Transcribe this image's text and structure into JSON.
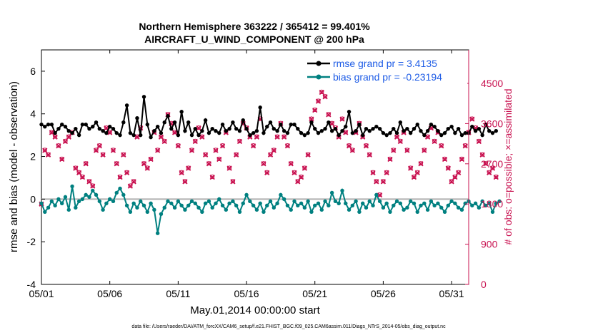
{
  "chart_data": {
    "type": "line",
    "title_line1": "Northern Hemisphere 363222 / 365412 = 99.401%",
    "title_line2": "AIRCRAFT_U_WIND_COMPONENT @ 200 hPa",
    "xlabel": "May.01,2014 00:00:00 start",
    "ylabel_left": "rmse and bias (model - observation)",
    "ylabel_right": "# of obs: o=possible; ×=assimilated",
    "footnote": "data file: /Users/raeder/DAI/ATM_forcXX/CAM6_setup/f.e21.FHIST_BGC.f09_025.CAM6assim.011/Diags_NTrS_2014-05/obs_diag_output.nc",
    "x_tick_labels": [
      "05/01",
      "05/06",
      "05/11",
      "05/16",
      "05/21",
      "05/26",
      "05/31"
    ],
    "x_tick_days": [
      0,
      5,
      10,
      15,
      20,
      25,
      30
    ],
    "xlim_days": [
      0,
      31.25
    ],
    "ylim_left": [
      -4,
      7
    ],
    "y_ticks_left": [
      -4,
      -2,
      0,
      2,
      4,
      6
    ],
    "y_tick_labels_left": [
      "-4",
      "-2",
      "0",
      "2",
      "4",
      "6"
    ],
    "ylim_right": [
      0,
      5250
    ],
    "y_ticks_right": [
      0,
      900,
      1800,
      2700,
      3600,
      4500
    ],
    "y_tick_labels_right": [
      "0",
      "900",
      "1800",
      "2700",
      "3600",
      "4500"
    ],
    "step_days": 0.25,
    "legend": [
      {
        "name": "rmse grand pr = 3.4135",
        "color": "#000000"
      },
      {
        "name": "bias grand pr = -0.23194",
        "color": "#008080"
      }
    ],
    "series": [
      {
        "name": "rmse",
        "color": "#000000",
        "values": [
          3.5,
          3.4,
          3.5,
          3.5,
          3.1,
          3.3,
          3.5,
          3.4,
          3.2,
          3.1,
          3.3,
          3.0,
          3.5,
          3.5,
          3.3,
          3.4,
          3.6,
          3.3,
          3.2,
          3.1,
          3.4,
          3.3,
          3.1,
          3.0,
          3.6,
          4.4,
          3.1,
          3.0,
          3.8,
          3.0,
          4.8,
          3.5,
          2.9,
          3.2,
          3.4,
          3.1,
          3.6,
          3.9,
          3.3,
          3.6,
          3.0,
          4.1,
          3.2,
          3.6,
          3.0,
          3.3,
          3.0,
          3.2,
          3.7,
          3.1,
          3.3,
          3.2,
          3.1,
          3.5,
          3.2,
          3.3,
          3.6,
          3.3,
          3.2,
          3.7,
          3.3,
          3.0,
          3.1,
          3.2,
          4.3,
          3.1,
          3.4,
          3.6,
          3.3,
          3.2,
          3.5,
          3.2,
          3.1,
          3.5,
          3.5,
          3.3,
          3.1,
          3.0,
          3.1,
          3.6,
          3.3,
          3.1,
          3.2,
          3.3,
          3.6,
          3.2,
          3.3,
          3.0,
          3.2,
          3.4,
          4.1,
          3.1,
          3.2,
          3.5,
          3.0,
          3.3,
          3.2,
          3.3,
          3.4,
          3.3,
          3.1,
          3.0,
          3.1,
          3.3,
          3.1,
          3.6,
          3.2,
          3.3,
          3.1,
          3.3,
          3.5,
          3.2,
          3.0,
          3.2,
          3.5,
          3.4,
          3.2,
          3.0,
          3.1,
          3.3,
          3.4,
          3.1,
          3.3,
          3.0,
          3.1,
          3.1,
          3.4,
          3.2,
          3.3,
          3.0,
          3.5,
          3.2,
          3.1,
          3.2
        ]
      },
      {
        "name": "bias",
        "color": "#008080",
        "values": [
          -0.2,
          -0.6,
          -0.4,
          -0.1,
          -0.3,
          0.0,
          -0.2,
          0.1,
          -0.5,
          0.6,
          -0.4,
          -0.1,
          0.0,
          0.2,
          0.1,
          0.4,
          0.2,
          -0.1,
          -0.5,
          -0.2,
          0.0,
          -0.1,
          0.3,
          0.5,
          0.2,
          -0.3,
          -0.6,
          -0.2,
          -0.4,
          -0.1,
          -0.3,
          -0.6,
          -0.2,
          -0.5,
          -1.6,
          -0.7,
          -0.4,
          -0.1,
          -0.2,
          -0.4,
          -0.1,
          -0.3,
          -0.5,
          -0.3,
          -0.1,
          -0.2,
          -0.4,
          -0.6,
          -0.2,
          -0.1,
          -0.4,
          -0.2,
          0.0,
          -0.3,
          -0.5,
          -0.2,
          -0.1,
          -0.3,
          -0.6,
          -0.2,
          0.2,
          -0.1,
          -0.3,
          -0.5,
          -0.2,
          -0.6,
          -0.3,
          -0.1,
          -0.4,
          -0.2,
          0.2,
          0.0,
          -0.3,
          -0.5,
          -0.1,
          -0.3,
          -0.2,
          -0.4,
          -0.1,
          -0.6,
          -0.3,
          -0.2,
          -0.5,
          -0.1,
          -0.3,
          0.3,
          -0.1,
          -0.2,
          0.4,
          -0.2,
          -0.5,
          -0.3,
          -0.1,
          -0.6,
          -0.2,
          -0.4,
          -0.1,
          -0.3,
          0.2,
          -0.1,
          -0.4,
          -0.2,
          -0.6,
          -0.3,
          -0.1,
          -0.2,
          -0.5,
          -0.4,
          -0.1,
          -0.2,
          -0.6,
          -0.3,
          -0.2,
          -0.5,
          -0.1,
          -0.3,
          -0.2,
          -0.4,
          -0.6,
          -0.3,
          -0.1,
          -0.2,
          -0.4,
          -0.5,
          -0.2,
          -0.1,
          -0.3,
          -0.2,
          -0.4,
          -0.1,
          -0.3,
          -0.2,
          -0.6,
          -0.2,
          -0.1
        ]
      },
      {
        "name": "obs_assimilated",
        "color": "#c8104f",
        "marker": "x",
        "values": [
          1800,
          3000,
          2900,
          3400,
          3300,
          3100,
          2800,
          3200,
          3300,
          3400,
          2600,
          2500,
          2400,
          2700,
          2300,
          2200,
          3000,
          3100,
          2900,
          3500,
          3400,
          3000,
          2700,
          2400,
          2900,
          2500,
          2200,
          2300,
          3300,
          3500,
          2700,
          2600,
          2800,
          3400,
          3000,
          3300,
          3200,
          3800,
          3600,
          3400,
          3100,
          2500,
          2300,
          2600,
          3000,
          3200,
          3500,
          3300,
          2900,
          2700,
          2400,
          3000,
          2800,
          3100,
          3400,
          2600,
          2300,
          2900,
          3200,
          3600,
          3500,
          3300,
          3100,
          3300,
          3700,
          2700,
          2500,
          2900,
          3000,
          3300,
          3600,
          3300,
          3100,
          2700,
          2500,
          2300,
          2400,
          2600,
          2900,
          3700,
          3900,
          4100,
          4300,
          4200,
          3800,
          3600,
          3500,
          3300,
          3700,
          3400,
          3100,
          3000,
          3400,
          3600,
          3300,
          3100,
          2900,
          2500,
          2300,
          2000,
          2300,
          2500,
          2800,
          3000,
          3300,
          3200,
          3400,
          3000,
          2600,
          2400,
          2500,
          2700,
          3000,
          3300,
          3500,
          3200,
          3400,
          3100,
          2800,
          2600,
          2300,
          2400,
          2500,
          2800,
          3100,
          3400,
          3700,
          3500,
          3200,
          2900,
          2700,
          2500,
          2600,
          2400
        ]
      },
      {
        "name": "obs_possible",
        "color": "#c8104f",
        "marker": "o",
        "values": [
          1800,
          3010,
          2910,
          3410,
          3310,
          3110,
          2810,
          3210,
          3310,
          3410,
          2610,
          2510,
          2410,
          2710,
          2310,
          2210,
          3010,
          3110,
          2910,
          3510,
          3410,
          3010,
          2710,
          2410,
          2910,
          2510,
          2210,
          2310,
          3310,
          3510,
          2710,
          2610,
          2810,
          3410,
          3010,
          3310,
          3210,
          3810,
          3610,
          3410,
          3110,
          2510,
          2310,
          2610,
          3010,
          3210,
          3510,
          3310,
          2910,
          2710,
          2410,
          3010,
          2810,
          3110,
          3410,
          2610,
          2310,
          2910,
          3210,
          3610,
          3510,
          3310,
          3110,
          3310,
          3710,
          2710,
          2510,
          2910,
          3010,
          3310,
          3610,
          3310,
          3110,
          2710,
          2510,
          2310,
          2410,
          2610,
          2910,
          3710,
          3910,
          4110,
          4310,
          4210,
          3810,
          3610,
          3510,
          3310,
          3710,
          3410,
          3110,
          3010,
          3410,
          3610,
          3310,
          3110,
          2910,
          2510,
          2310,
          2010,
          2310,
          2510,
          2810,
          3010,
          3310,
          3210,
          3410,
          3010,
          2610,
          2410,
          2510,
          2710,
          3010,
          3310,
          3510,
          3210,
          3410,
          3110,
          2810,
          2610,
          2310,
          2410,
          2510,
          2810,
          3110,
          3410,
          3710,
          3510,
          3210,
          2910,
          2710,
          2510,
          2610,
          2410
        ]
      }
    ]
  }
}
